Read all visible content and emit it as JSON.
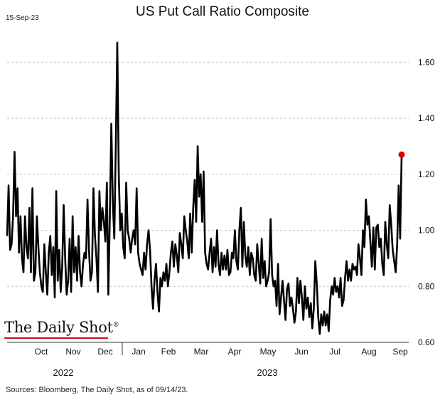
{
  "chart_data": {
    "type": "line",
    "title": "US Put Call Ratio Composite",
    "date_stamp": "15-Sep-23",
    "source": "Sources: Bloomberg, The Daily Shot, as of 09/14/23.",
    "logo": "The Daily Shot",
    "ylim": [
      0.6,
      1.7
    ],
    "y_ticks": [
      "0.60",
      "0.80",
      "1.00",
      "1.20",
      "1.40",
      "1.60"
    ],
    "month_labels": [
      "Oct",
      "Nov",
      "Dec",
      "Jan",
      "Feb",
      "Mar",
      "Apr",
      "May",
      "Jun",
      "Jul",
      "Aug",
      "Sep"
    ],
    "year_labels": [
      "2022",
      "2023"
    ],
    "grid": true,
    "series": [
      {
        "color": "#000000",
        "highlight_color": "#e00000",
        "values": [
          0.98,
          1.16,
          0.93,
          0.95,
          1.05,
          1.28,
          1.05,
          1.15,
          0.92,
          1.05,
          0.9,
          0.85,
          1.05,
          0.94,
          0.9,
          1.08,
          0.85,
          1.15,
          0.82,
          0.85,
          1.05,
          0.94,
          0.85,
          0.8,
          0.78,
          0.95,
          0.85,
          0.77,
          0.92,
          0.98,
          0.84,
          0.94,
          0.76,
          1.14,
          0.82,
          0.93,
          0.78,
          0.87,
          1.09,
          0.9,
          0.77,
          0.82,
          0.97,
          0.78,
          1.05,
          0.85,
          0.94,
          0.82,
          0.98,
          0.85,
          0.8,
          0.88,
          0.92,
          0.9,
          1.11,
          0.93,
          0.82,
          0.85,
          1.15,
          0.98,
          0.9,
          0.78,
          1.14,
          1.0,
          1.08,
          1.03,
          0.96,
          1.17,
          0.77,
          1.05,
          1.38,
          1.1,
          0.97,
          1.3,
          1.67,
          1.2,
          1.0,
          1.06,
          0.94,
          0.9,
          1.17,
          1.0,
          0.97,
          0.92,
          0.97,
          1.0,
          0.95,
          1.15,
          0.92,
          0.88,
          0.86,
          0.84,
          0.92,
          0.86,
          0.95,
          1.0,
          0.93,
          0.8,
          0.72,
          0.82,
          0.88,
          0.78,
          0.71,
          0.83,
          0.8,
          0.85,
          0.82,
          0.88,
          0.8,
          0.85,
          0.92,
          0.96,
          0.87,
          0.95,
          0.91,
          0.85,
          0.99,
          0.95,
          0.9,
          1.05,
          1.0,
          0.96,
          0.9,
          1.06,
          0.92,
          1.08,
          1.18,
          1.03,
          1.3,
          1.12,
          1.2,
          1.03,
          1.21,
          0.92,
          0.88,
          0.86,
          0.92,
          0.97,
          0.85,
          0.94,
          0.87,
          1.0,
          0.88,
          0.84,
          0.92,
          0.86,
          0.91,
          0.86,
          0.93,
          0.84,
          0.85,
          0.92,
          0.9,
          1.0,
          0.89,
          0.86,
          1.0,
          1.08,
          0.87,
          1.03,
          0.91,
          0.87,
          0.94,
          0.84,
          0.92,
          0.9,
          0.84,
          0.82,
          0.95,
          0.88,
          0.81,
          0.97,
          0.83,
          0.89,
          0.8,
          0.82,
          0.85,
          1.04,
          0.84,
          0.8,
          0.82,
          0.73,
          0.88,
          0.7,
          0.76,
          0.82,
          0.75,
          0.68,
          0.79,
          0.81,
          0.73,
          0.76,
          0.72,
          0.67,
          0.71,
          0.83,
          0.74,
          0.82,
          0.76,
          0.68,
          0.8,
          0.72,
          0.76,
          0.69,
          0.74,
          0.65,
          0.72,
          0.89,
          0.81,
          0.69,
          0.63,
          0.7,
          0.66,
          0.71,
          0.66,
          0.7,
          0.64,
          0.75,
          0.8,
          0.77,
          0.83,
          0.78,
          0.8,
          0.76,
          0.83,
          0.73,
          0.75,
          0.83,
          0.89,
          0.82,
          0.86,
          0.82,
          0.88,
          0.86,
          0.87,
          0.84,
          0.95,
          0.9,
          0.84,
          1.0,
          0.94,
          1.11,
          1.02,
          1.05,
          0.96,
          0.87,
          1.01,
          0.86,
          1.01,
          1.02,
          0.94,
          0.97,
          0.88,
          0.84,
          1.03,
          0.95,
          0.9,
          1.09,
          1.02,
          0.93,
          0.89,
          0.85,
          0.95,
          1.16,
          0.97,
          1.27
        ]
      }
    ]
  }
}
